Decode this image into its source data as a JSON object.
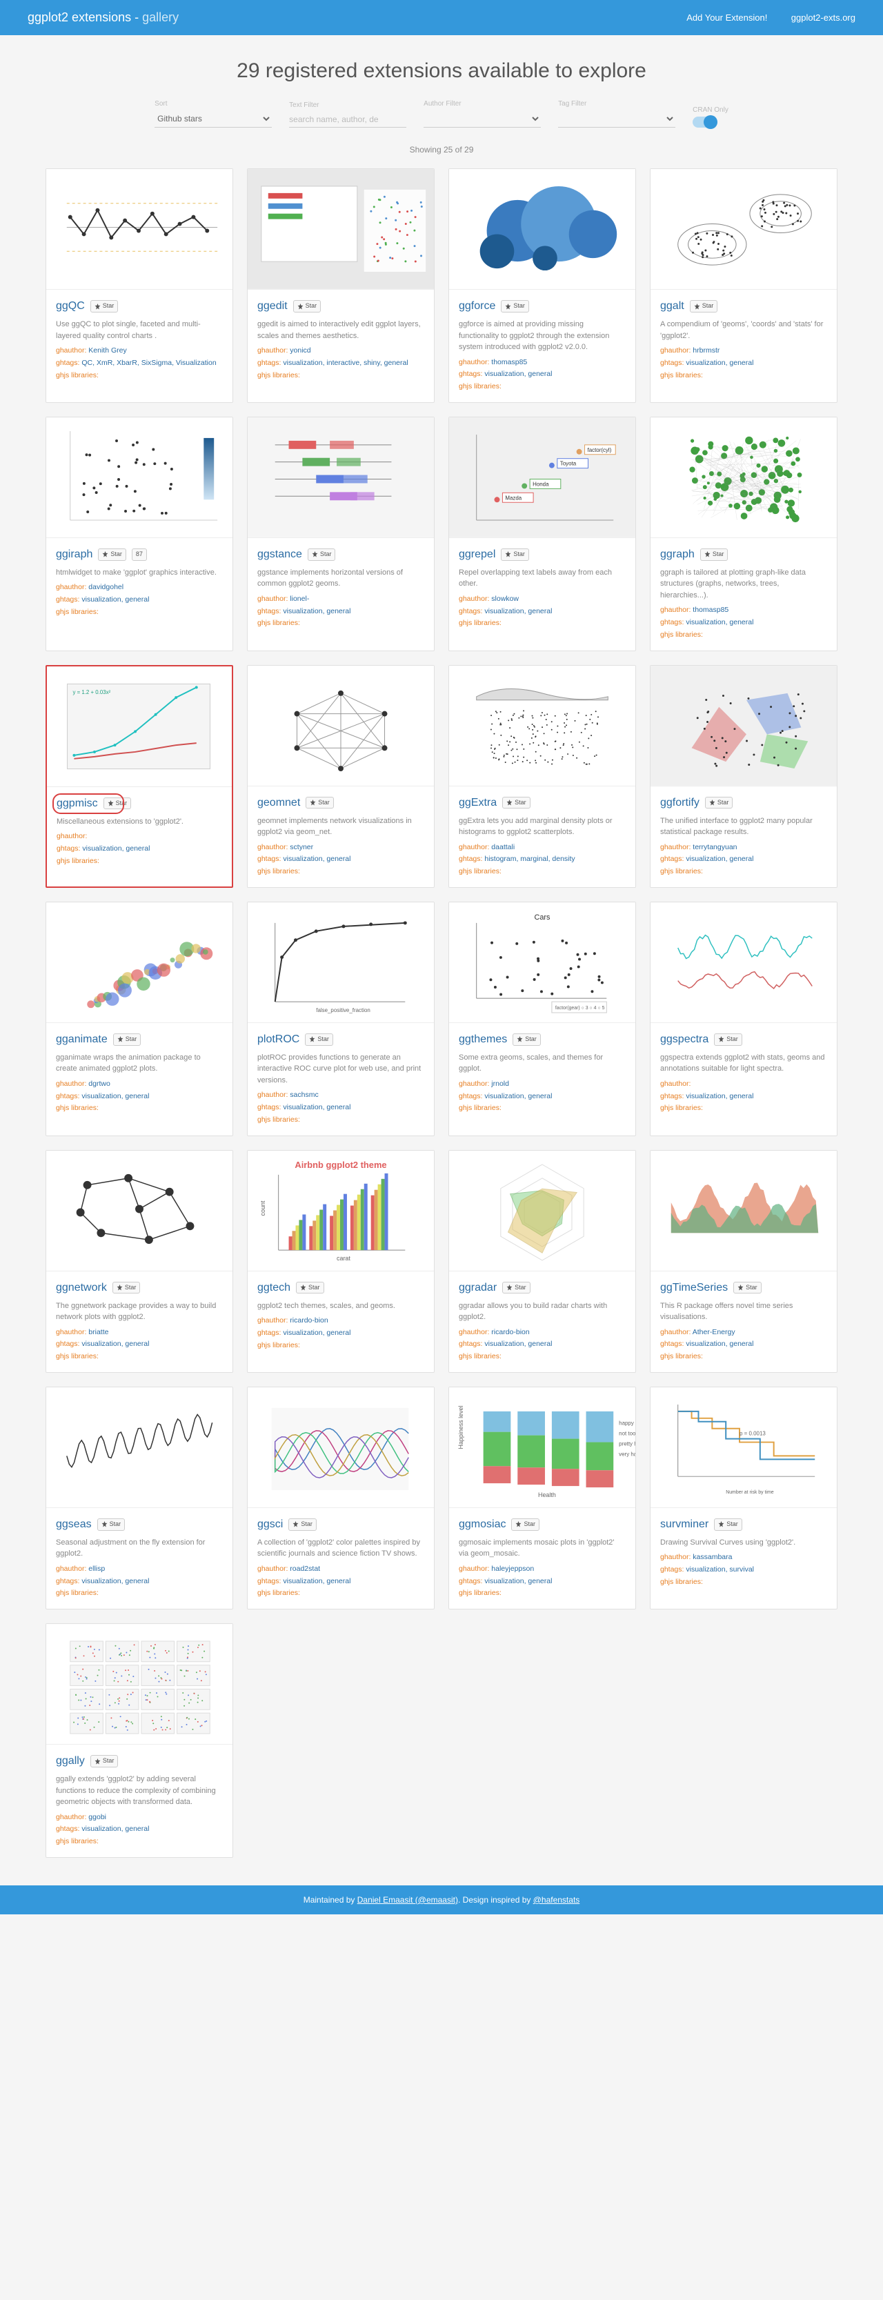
{
  "header": {
    "brand": "ggplot2 extensions",
    "sep": " - ",
    "gallery": "gallery",
    "link_add": "Add Your Extension!",
    "link_site": "ggplot2-exts.org"
  },
  "title": "29 registered extensions available to explore",
  "filters": {
    "sort_label": "Sort",
    "sort_value": "Github stars",
    "text_label": "Text Filter",
    "text_placeholder": "search name, author, de",
    "author_label": "Author Filter",
    "tag_label": "Tag Filter",
    "cran_label": "CRAN Only"
  },
  "showing": "Showing 25 of 29",
  "star_label": "Star",
  "labels": {
    "author": "ghauthor:",
    "tags": "ghtags:",
    "libs": "ghjs libraries:"
  },
  "cards": [
    {
      "name": "ggQC",
      "desc": "Use ggQC to plot single, faceted and multi-layered quality control charts .",
      "author": "Kenith Grey",
      "tags": "QC, XmR, XbarR, SixSigma, Visualization",
      "thumb": "qc"
    },
    {
      "name": "ggedit",
      "desc": "ggedit is aimed to interactively edit ggplot layers, scales and themes aesthetics.",
      "author": "yonicd",
      "tags": "visualization, interactive, shiny, general",
      "thumb": "edit"
    },
    {
      "name": "ggforce",
      "desc": "ggforce is aimed at providing missing functionality to ggplot2 through the extension system introduced with ggplot2 v2.0.0.",
      "author": "thomasp85",
      "tags": "visualization, general",
      "thumb": "force"
    },
    {
      "name": "ggalt",
      "desc": "A compendium of 'geoms', 'coords' and 'stats' for 'ggplot2'.",
      "author": "hrbrmstr",
      "tags": "visualization, general",
      "thumb": "alt"
    },
    {
      "name": "ggiraph",
      "desc": "htmlwidget to make 'ggplot' graphics interactive.",
      "author": "davidgohel",
      "tags": "visualization, general",
      "thumb": "iraph",
      "extra_star": "87"
    },
    {
      "name": "ggstance",
      "desc": "ggstance implements horizontal versions of common ggplot2 geoms.",
      "author": "lionel-",
      "tags": "visualization, general",
      "thumb": "stance"
    },
    {
      "name": "ggrepel",
      "desc": "Repel overlapping text labels away from each other.",
      "author": "slowkow",
      "tags": "visualization, general",
      "thumb": "repel"
    },
    {
      "name": "ggraph",
      "desc": "ggraph is tailored at plotting graph-like data structures (graphs, networks, trees, hierarchies...).",
      "author": "thomasp85",
      "tags": "visualization, general",
      "thumb": "graph"
    },
    {
      "name": "ggpmisc",
      "desc": "Miscellaneous extensions to 'ggplot2'.",
      "author": "",
      "tags": "visualization, general",
      "thumb": "pmisc",
      "highlighted": true
    },
    {
      "name": "geomnet",
      "desc": "geomnet implements network visualizations in ggplot2 via geom_net.",
      "author": "sctyner",
      "tags": "visualization, general",
      "thumb": "geomnet"
    },
    {
      "name": "ggExtra",
      "desc": "ggExtra lets you add marginal density plots or histograms to ggplot2 scatterplots.",
      "author": "daattali",
      "tags": "histogram, marginal, density",
      "thumb": "extra"
    },
    {
      "name": "ggfortify",
      "desc": "The unified interface to ggplot2 many popular statistical package results.",
      "author": "terrytangyuan",
      "tags": "visualization, general",
      "thumb": "fortify"
    },
    {
      "name": "gganimate",
      "desc": "gganimate wraps the animation package to create animated ggplot2 plots.",
      "author": "dgrtwo",
      "tags": "visualization, general",
      "thumb": "animate"
    },
    {
      "name": "plotROC",
      "desc": "plotROC provides functions to generate an interactive ROC curve plot for web use, and print versions.",
      "author": "sachsmc",
      "tags": "visualization, general",
      "thumb": "roc"
    },
    {
      "name": "ggthemes",
      "desc": "Some extra geoms, scales, and themes for ggplot.",
      "author": "jrnold",
      "tags": "visualization, general",
      "thumb": "themes"
    },
    {
      "name": "ggspectra",
      "desc": "ggspectra extends ggplot2 with stats, geoms and annotations suitable for light spectra.",
      "author": "",
      "tags": "visualization, general",
      "thumb": "spectra"
    },
    {
      "name": "ggnetwork",
      "desc": "The ggnetwork package provides a way to build network plots with ggplot2.",
      "author": "briatte",
      "tags": "visualization, general",
      "thumb": "network"
    },
    {
      "name": "ggtech",
      "desc": "ggplot2 tech themes, scales, and geoms.",
      "author": "ricardo-bion",
      "tags": "visualization, general",
      "thumb": "tech"
    },
    {
      "name": "ggradar",
      "desc": "ggradar allows you to build radar charts with ggplot2.",
      "author": "ricardo-bion",
      "tags": "visualization, general",
      "thumb": "radar"
    },
    {
      "name": "ggTimeSeries",
      "desc": "This R package offers novel time series visualisations.",
      "author": "Ather-Energy",
      "tags": "visualization, general",
      "thumb": "timeseries"
    },
    {
      "name": "ggseas",
      "desc": "Seasonal adjustment on the fly extension for ggplot2.",
      "author": "ellisp",
      "tags": "visualization, general",
      "thumb": "seas"
    },
    {
      "name": "ggsci",
      "desc": "A collection of 'ggplot2' color palettes inspired by scientific journals and science fiction TV shows.",
      "author": "road2stat",
      "tags": "visualization, general",
      "thumb": "sci"
    },
    {
      "name": "ggmosiac",
      "desc": "ggmosaic implements mosaic plots in 'ggplot2' via geom_mosaic.",
      "author": "haleyjeppson",
      "tags": "visualization, general",
      "thumb": "mosaic"
    },
    {
      "name": "survminer",
      "desc": "Drawing Survival Curves using 'ggplot2'.",
      "author": "kassambara",
      "tags": "visualization, survival",
      "thumb": "surv"
    },
    {
      "name": "ggally",
      "desc": "ggally extends 'ggplot2' by adding several functions to reduce the complexity of combining geometric objects with transformed data.",
      "author": "ggobi",
      "tags": "visualization, general",
      "thumb": "ggally"
    }
  ],
  "footer": {
    "text_a": "Maintained by ",
    "link_a": "Daniel Emaasit (@emaasit)",
    "text_b": ". Design inspired by ",
    "link_b": "@hafenstats"
  },
  "palette": {
    "primary": "#3498db",
    "accent": "#e67e22",
    "link": "#2b6ca3",
    "highlight": "#d94040"
  }
}
